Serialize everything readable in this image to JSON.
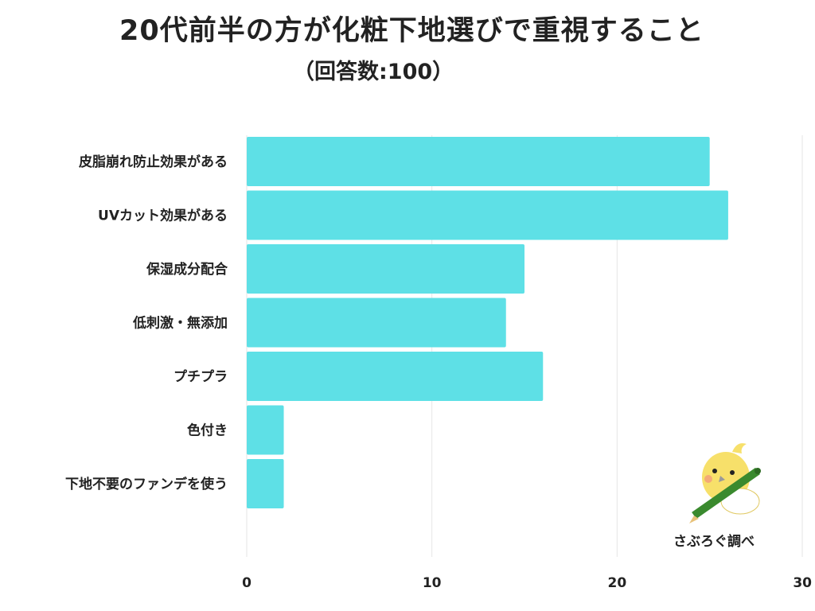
{
  "title": "20代前半の方が化粧下地選びで重視すること",
  "subtitle": "（回答数:100）",
  "credit": "さぶろぐ調べ",
  "chart_data": {
    "type": "bar",
    "orientation": "horizontal",
    "categories": [
      "皮脂崩れ防止効果がある",
      "UVカット効果がある",
      "保湿成分配合",
      "低刺激・無添加",
      "プチプラ",
      "色付き",
      "下地不要のファンデを使う"
    ],
    "values": [
      25,
      26,
      15,
      14,
      16,
      2,
      2
    ],
    "xlim": [
      0,
      30
    ],
    "xticks": [
      0,
      10,
      20,
      30
    ],
    "grid": true,
    "bar_color": "#5ee0e6",
    "grid_color": "#e6e6e6"
  },
  "mascot": {
    "icon": "bird-with-pencil-icon",
    "body_color": "#f7e06a",
    "cheek_color": "#f29c7a",
    "pencil_color": "#3a8a2e"
  }
}
